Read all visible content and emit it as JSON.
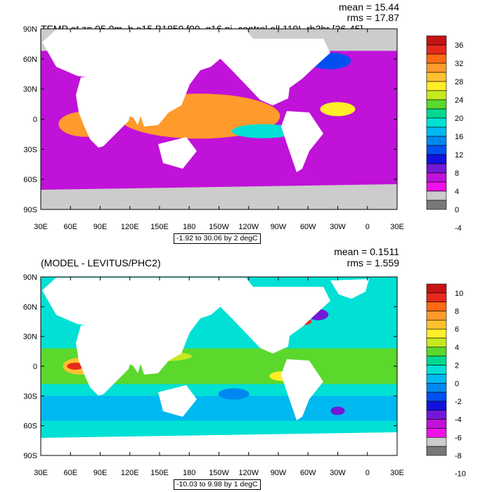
{
  "chart_data": [
    {
      "type": "heatmap",
      "title": "TEMP at z=  95.0m, b.e15.B1850.f09_g16.pi_control.all.119L.rh2hr [26-45]",
      "stats": {
        "mean": "mean = 15.44",
        "rms": "rms = 17.87"
      },
      "x_ticks": [
        "30E",
        "60E",
        "90E",
        "120E",
        "150E",
        "180",
        "150W",
        "120W",
        "90W",
        "60W",
        "30W",
        "0",
        "30E"
      ],
      "y_ticks": [
        "90N",
        "60N",
        "30N",
        "0",
        "30S",
        "60S",
        "90S"
      ],
      "xlim": [
        30,
        390
      ],
      "ylim": [
        -90,
        90
      ],
      "range_note": "-1.92 to 30.06 by 2 degC",
      "colorbar": {
        "labels": [
          "36",
          "32",
          "28",
          "24",
          "20",
          "16",
          "12",
          "8",
          "4",
          "0",
          "-4"
        ],
        "colors": [
          "#c41416",
          "#e8281c",
          "#ff6a12",
          "#ff9a2c",
          "#ffc030",
          "#ffee28",
          "#c6ea20",
          "#5ad82c",
          "#00d890",
          "#00e0d4",
          "#00b8f0",
          "#0088f0",
          "#0050f0",
          "#1212e0",
          "#7418d8",
          "#c012d8",
          "#f010e8",
          "#cccccc",
          "#787878"
        ]
      }
    },
    {
      "type": "heatmap",
      "title": "(MODEL - LEVITUS/PHC2)",
      "stats": {
        "mean": "mean = 0.1511",
        "rms": "rms = 1.559"
      },
      "x_ticks": [
        "30E",
        "60E",
        "90E",
        "120E",
        "150E",
        "180",
        "150W",
        "120W",
        "90W",
        "60W",
        "30W",
        "0",
        "30E"
      ],
      "y_ticks": [
        "90N",
        "60N",
        "30N",
        "0",
        "30S",
        "60S",
        "90S"
      ],
      "xlim": [
        30,
        390
      ],
      "ylim": [
        -90,
        90
      ],
      "range_note": "-10.03 to 9.98 by 1 degC",
      "colorbar": {
        "labels": [
          "10",
          "8",
          "6",
          "4",
          "2",
          "0",
          "-2",
          "-4",
          "-6",
          "-8",
          "-10"
        ],
        "colors": [
          "#c41416",
          "#e8281c",
          "#ff6a12",
          "#ff9a2c",
          "#ffc030",
          "#ffee28",
          "#c6ea20",
          "#5ad82c",
          "#00d890",
          "#00e0d4",
          "#00b8f0",
          "#0088f0",
          "#0050f0",
          "#1212e0",
          "#7418d8",
          "#c012d8",
          "#f010e8",
          "#cccccc",
          "#787878"
        ]
      }
    }
  ]
}
